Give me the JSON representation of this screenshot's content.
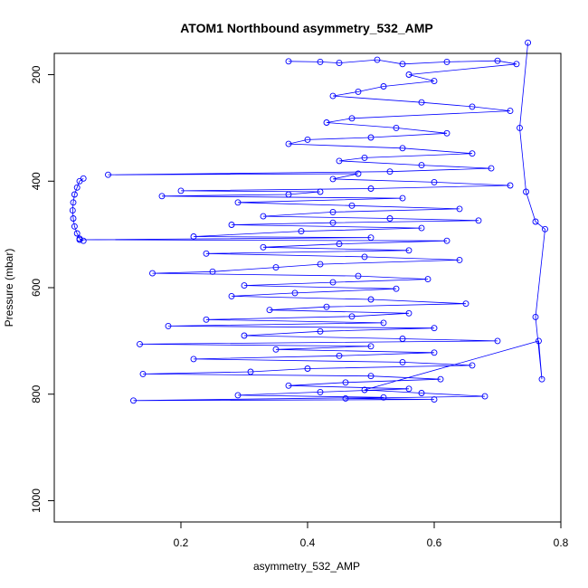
{
  "chart_data": {
    "type": "scatter",
    "title": "ATOM1 Northbound asymmetry_532_AMP",
    "xlabel": "asymmetry_532_AMP",
    "ylabel": "Pressure (mbar)",
    "xlim": [
      0.0,
      0.8
    ],
    "ylim": [
      1040,
      160
    ],
    "y_reversed": true,
    "x_ticks": [
      0.2,
      0.4,
      0.6,
      0.8
    ],
    "x_tick_labels": [
      "0.2",
      "0.4",
      "0.6",
      "0.8"
    ],
    "y_ticks": [
      200,
      400,
      600,
      800,
      1000
    ],
    "y_tick_labels": [
      "200",
      "400",
      "600",
      "800",
      "1000"
    ],
    "grid": false,
    "series": [
      {
        "color": "#0000ff",
        "marker": "open-circle",
        "connected": true,
        "points": [
          [
            0.37,
            175
          ],
          [
            0.42,
            176
          ],
          [
            0.45,
            178
          ],
          [
            0.51,
            172
          ],
          [
            0.55,
            180
          ],
          [
            0.62,
            176
          ],
          [
            0.7,
            174
          ],
          [
            0.73,
            180
          ],
          [
            0.56,
            200
          ],
          [
            0.6,
            212
          ],
          [
            0.52,
            222
          ],
          [
            0.48,
            232
          ],
          [
            0.44,
            240
          ],
          [
            0.58,
            252
          ],
          [
            0.66,
            260
          ],
          [
            0.72,
            268
          ],
          [
            0.47,
            282
          ],
          [
            0.43,
            290
          ],
          [
            0.54,
            300
          ],
          [
            0.62,
            310
          ],
          [
            0.5,
            318
          ],
          [
            0.4,
            322
          ],
          [
            0.37,
            330
          ],
          [
            0.55,
            338
          ],
          [
            0.66,
            348
          ],
          [
            0.49,
            356
          ],
          [
            0.45,
            362
          ],
          [
            0.58,
            370
          ],
          [
            0.69,
            376
          ],
          [
            0.53,
            382
          ],
          [
            0.085,
            388
          ],
          [
            0.48,
            386
          ],
          [
            0.44,
            396
          ],
          [
            0.6,
            402
          ],
          [
            0.72,
            408
          ],
          [
            0.5,
            414
          ],
          [
            0.2,
            418
          ],
          [
            0.42,
            420
          ],
          [
            0.37,
            425
          ],
          [
            0.17,
            428
          ],
          [
            0.55,
            432
          ],
          [
            0.29,
            440
          ],
          [
            0.47,
            446
          ],
          [
            0.64,
            452
          ],
          [
            0.44,
            458
          ],
          [
            0.33,
            466
          ],
          [
            0.53,
            470
          ],
          [
            0.67,
            474
          ],
          [
            0.44,
            478
          ],
          [
            0.28,
            482
          ],
          [
            0.58,
            488
          ],
          [
            0.39,
            494
          ],
          [
            0.22,
            504
          ],
          [
            0.5,
            506
          ],
          [
            0.04,
            510
          ],
          [
            0.62,
            512
          ],
          [
            0.45,
            518
          ],
          [
            0.33,
            524
          ],
          [
            0.56,
            530
          ],
          [
            0.24,
            536
          ],
          [
            0.49,
            542
          ],
          [
            0.64,
            548
          ],
          [
            0.42,
            556
          ],
          [
            0.35,
            562
          ],
          [
            0.25,
            570
          ],
          [
            0.155,
            573
          ],
          [
            0.48,
            578
          ],
          [
            0.59,
            584
          ],
          [
            0.44,
            590
          ],
          [
            0.3,
            596
          ],
          [
            0.54,
            602
          ],
          [
            0.38,
            610
          ],
          [
            0.28,
            616
          ],
          [
            0.5,
            622
          ],
          [
            0.65,
            630
          ],
          [
            0.43,
            636
          ],
          [
            0.34,
            642
          ],
          [
            0.56,
            648
          ],
          [
            0.47,
            654
          ],
          [
            0.24,
            660
          ],
          [
            0.52,
            666
          ],
          [
            0.18,
            672
          ],
          [
            0.6,
            676
          ],
          [
            0.42,
            682
          ],
          [
            0.3,
            690
          ],
          [
            0.55,
            696
          ],
          [
            0.7,
            700
          ],
          [
            0.135,
            706
          ],
          [
            0.5,
            710
          ],
          [
            0.35,
            716
          ],
          [
            0.6,
            722
          ],
          [
            0.45,
            728
          ],
          [
            0.22,
            734
          ],
          [
            0.55,
            740
          ],
          [
            0.66,
            746
          ],
          [
            0.4,
            752
          ],
          [
            0.31,
            758
          ],
          [
            0.14,
            762
          ],
          [
            0.5,
            766
          ],
          [
            0.61,
            772
          ],
          [
            0.46,
            778
          ],
          [
            0.37,
            784
          ],
          [
            0.56,
            790
          ],
          [
            0.42,
            796
          ],
          [
            0.29,
            802
          ],
          [
            0.52,
            806
          ],
          [
            0.125,
            812
          ],
          [
            0.6,
            810
          ],
          [
            0.46,
            808
          ],
          [
            0.68,
            804
          ],
          [
            0.58,
            798
          ],
          [
            0.49,
            792
          ],
          [
            0.765,
            700
          ],
          [
            0.77,
            772
          ],
          [
            0.76,
            655
          ],
          [
            0.775,
            490
          ],
          [
            0.76,
            476
          ],
          [
            0.745,
            420
          ],
          [
            0.735,
            300
          ],
          [
            0.748,
            140
          ]
        ]
      },
      {
        "color": "#0000ff",
        "marker": "open-circle",
        "connected": true,
        "points": [
          [
            0.046,
            395
          ],
          [
            0.04,
            400
          ],
          [
            0.036,
            412
          ],
          [
            0.032,
            425
          ],
          [
            0.03,
            440
          ],
          [
            0.029,
            455
          ],
          [
            0.03,
            470
          ],
          [
            0.032,
            485
          ],
          [
            0.036,
            498
          ],
          [
            0.04,
            508
          ],
          [
            0.046,
            512
          ]
        ]
      }
    ]
  }
}
